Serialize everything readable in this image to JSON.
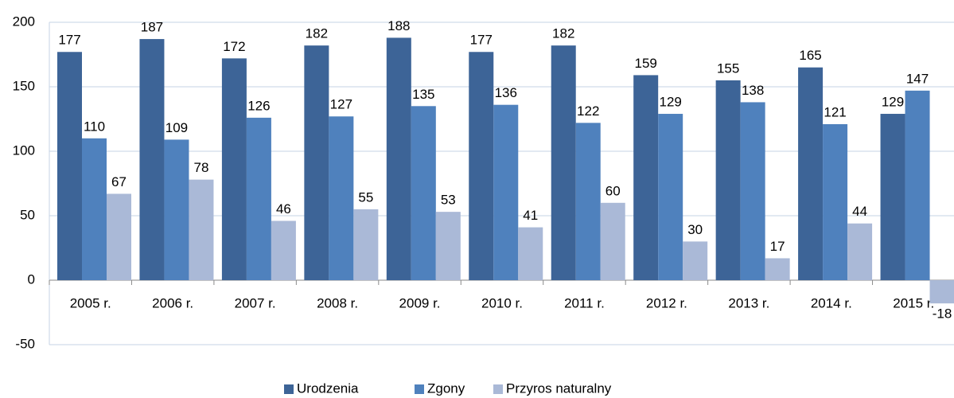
{
  "chart_data": {
    "type": "bar",
    "categories": [
      "2005 r.",
      "2006 r.",
      "2007 r.",
      "2008 r.",
      "2009 r.",
      "2010 r.",
      "2011 r.",
      "2012 r.",
      "2013 r.",
      "2014 r.",
      "2015 r."
    ],
    "series": [
      {
        "name": "Urodzenia",
        "color": "#3d6497",
        "values": [
          177,
          187,
          172,
          182,
          188,
          177,
          182,
          159,
          155,
          165,
          129
        ]
      },
      {
        "name": "Zgony",
        "color": "#4f81bd",
        "values": [
          110,
          109,
          126,
          127,
          135,
          136,
          122,
          129,
          138,
          121,
          147
        ]
      },
      {
        "name": "Przyros naturalny",
        "color": "#aab9d7",
        "values": [
          67,
          78,
          46,
          55,
          53,
          41,
          60,
          30,
          17,
          44,
          -18
        ]
      }
    ],
    "ylim": [
      -50,
      200
    ],
    "yticks": [
      -50,
      0,
      50,
      100,
      150,
      200
    ],
    "grid": true,
    "legend": "bottom"
  }
}
